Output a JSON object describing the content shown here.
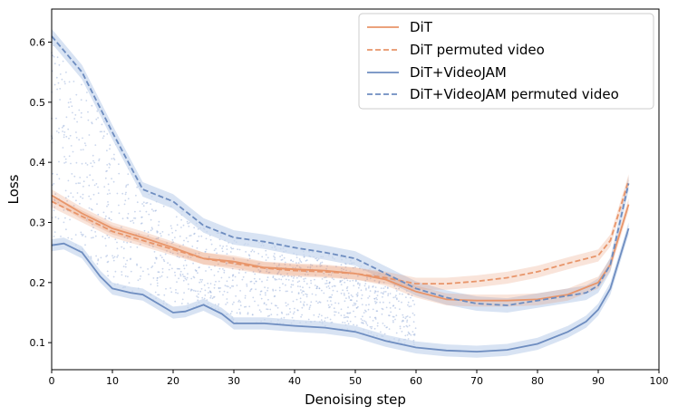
{
  "chart_data": {
    "type": "line",
    "title": "",
    "xlabel": "Denoising step",
    "ylabel": "Loss",
    "xlim": [
      0,
      100
    ],
    "ylim": [
      0.055,
      0.655
    ],
    "xticks": [
      0,
      10,
      20,
      30,
      40,
      50,
      60,
      70,
      80,
      90,
      100
    ],
    "yticks": [
      0.1,
      0.2,
      0.3,
      0.4,
      0.5,
      0.6
    ],
    "legend_position": "top-right",
    "colors": {
      "orange": "#e8956a",
      "blue": "#6e8dc0",
      "blue_band": "#c7d7ee",
      "scatter": "#9fb5dc"
    },
    "series": [
      {
        "name": "DiT",
        "style": "solid",
        "color": "#e8956a",
        "x": [
          0,
          5,
          10,
          15,
          20,
          25,
          30,
          35,
          40,
          45,
          50,
          55,
          60,
          65,
          70,
          75,
          80,
          85,
          90,
          92,
          95
        ],
        "y": [
          0.345,
          0.315,
          0.29,
          0.275,
          0.258,
          0.24,
          0.235,
          0.225,
          0.222,
          0.22,
          0.215,
          0.205,
          0.185,
          0.172,
          0.17,
          0.17,
          0.172,
          0.18,
          0.2,
          0.23,
          0.33
        ]
      },
      {
        "name": "DiT permuted video",
        "style": "dashed",
        "color": "#e8956a",
        "x": [
          0,
          5,
          10,
          15,
          20,
          25,
          30,
          35,
          40,
          45,
          50,
          55,
          60,
          65,
          70,
          75,
          80,
          85,
          90,
          92,
          95
        ],
        "y": [
          0.335,
          0.31,
          0.285,
          0.27,
          0.255,
          0.24,
          0.232,
          0.224,
          0.22,
          0.218,
          0.215,
          0.208,
          0.198,
          0.198,
          0.202,
          0.208,
          0.218,
          0.232,
          0.245,
          0.27,
          0.37
        ]
      },
      {
        "name": "DiT+VideoJAM",
        "style": "solid",
        "color": "#6e8dc0",
        "x": [
          0,
          2,
          5,
          8,
          10,
          13,
          15,
          18,
          20,
          22,
          25,
          28,
          30,
          35,
          40,
          45,
          50,
          55,
          60,
          65,
          70,
          75,
          80,
          85,
          88,
          90,
          92,
          95
        ],
        "y": [
          0.262,
          0.265,
          0.25,
          0.21,
          0.19,
          0.183,
          0.18,
          0.162,
          0.15,
          0.152,
          0.163,
          0.148,
          0.132,
          0.132,
          0.128,
          0.125,
          0.118,
          0.103,
          0.092,
          0.087,
          0.085,
          0.088,
          0.098,
          0.118,
          0.135,
          0.155,
          0.19,
          0.29
        ]
      },
      {
        "name": "DiT+VideoJAM permuted video",
        "style": "dashed",
        "color": "#6e8dc0",
        "x": [
          0,
          5,
          10,
          15,
          20,
          25,
          30,
          35,
          40,
          45,
          50,
          55,
          60,
          65,
          70,
          75,
          80,
          85,
          88,
          90,
          92,
          95
        ],
        "y": [
          0.61,
          0.55,
          0.45,
          0.355,
          0.335,
          0.295,
          0.275,
          0.268,
          0.258,
          0.25,
          0.24,
          0.215,
          0.19,
          0.175,
          0.165,
          0.162,
          0.17,
          0.178,
          0.183,
          0.195,
          0.23,
          0.365
        ]
      }
    ]
  }
}
